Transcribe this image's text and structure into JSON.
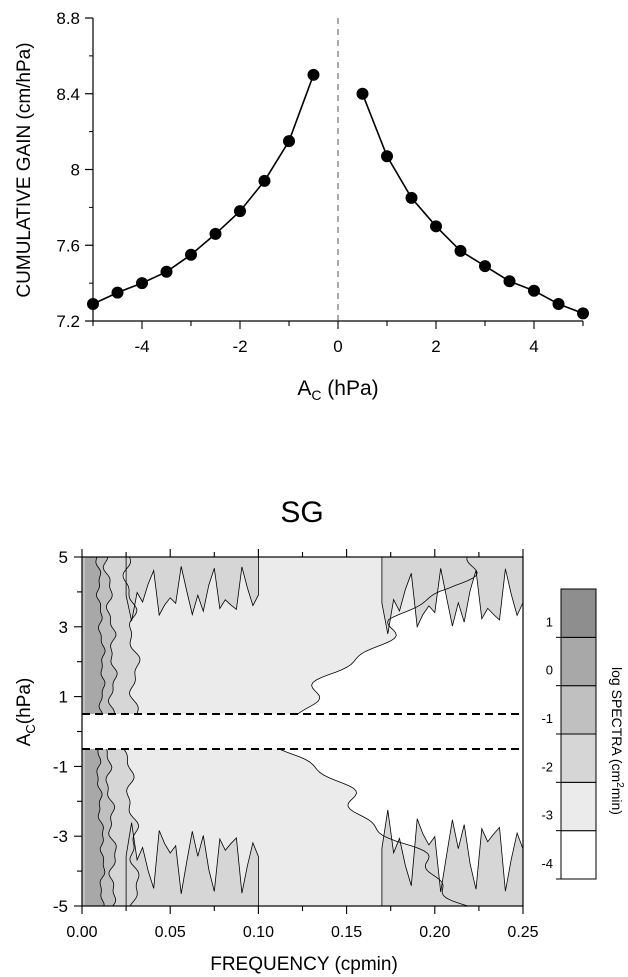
{
  "chart_data": [
    {
      "type": "scatter",
      "title": "",
      "xlabel": "A",
      "xlabel_sub": "C",
      "xlabel_unit": " (hPa)",
      "ylabel": "CUMULATIVE GAIN (cm/hPa)",
      "xlim": [
        -5,
        5
      ],
      "ylim": [
        7.2,
        8.8
      ],
      "x_ticks": [
        -4,
        -2,
        0,
        2,
        4
      ],
      "y_ticks": [
        7.2,
        7.6,
        8,
        8.4,
        8.8
      ],
      "x_tick_labels": [
        "-4",
        "-2",
        "0",
        "2",
        "4"
      ],
      "y_tick_labels": [
        "7.2",
        "7.6",
        "8",
        "8.4",
        "8.8"
      ],
      "reference_line_x": 0,
      "series": [
        {
          "x": [
            -5,
            -4.5,
            -4,
            -3.5,
            -3,
            -2.5,
            -2,
            -1.5,
            -1,
            -0.5
          ],
          "y": [
            7.29,
            7.35,
            7.4,
            7.46,
            7.55,
            7.66,
            7.78,
            7.94,
            8.15,
            8.5
          ]
        },
        {
          "x": [
            0.5,
            1,
            1.5,
            2,
            2.5,
            3,
            3.5,
            4,
            4.5,
            5
          ],
          "y": [
            8.4,
            8.07,
            7.85,
            7.7,
            7.57,
            7.49,
            7.41,
            7.36,
            7.29,
            7.24
          ]
        }
      ]
    },
    {
      "type": "heatmap",
      "title": "SG",
      "xlabel": "FREQUENCY (cpmin)",
      "ylabel": "A",
      "ylabel_sub": "C",
      "ylabel_unit": "(hPa)",
      "xlim": [
        0,
        0.25
      ],
      "ylim": [
        -5,
        5
      ],
      "x_tick_labels": [
        "0.00",
        "0.05",
        "0.10",
        "0.15",
        "0.20",
        "0.25"
      ],
      "y_tick_labels": [
        "5",
        "3",
        "1",
        "-1",
        "-3",
        "-5"
      ],
      "excluded_band": [
        -0.5,
        0.5
      ],
      "colorbar": {
        "label": "log SPECTRA (cm",
        "label_sup": "2",
        "label_end": "min)",
        "levels": [
          -4,
          -3,
          -2,
          -1,
          0,
          1
        ],
        "tick_labels": [
          "1",
          "0",
          "-1",
          "-2",
          "-3",
          "-4"
        ],
        "fills": [
          "#ffffff",
          "#ebebeb",
          "#d6d6d6",
          "#c0c0c0",
          "#a8a8a8",
          "#8e8e8e"
        ]
      },
      "contour_frequency_edges": {
        "upper": {
          "level_-3": [
            0.22,
            0.21,
            0.18,
            0.16,
            0.14,
            0.12
          ],
          "level_-2": [
            0.025,
            0.028,
            0.03,
            0.03
          ],
          "level_-1": [
            0.014,
            0.016,
            0.018,
            0.017
          ],
          "level_0": [
            0.009,
            0.01,
            0.012,
            0.011
          ]
        },
        "lower": {
          "level_-3": [
            0.12,
            0.14,
            0.16,
            0.18,
            0.2,
            0.22
          ],
          "level_-2": [
            0.025,
            0.028,
            0.03,
            0.03
          ],
          "level_-1": [
            0.014,
            0.016,
            0.018,
            0.017
          ],
          "level_0": [
            0.009,
            0.01,
            0.012,
            0.011
          ]
        }
      }
    }
  ]
}
